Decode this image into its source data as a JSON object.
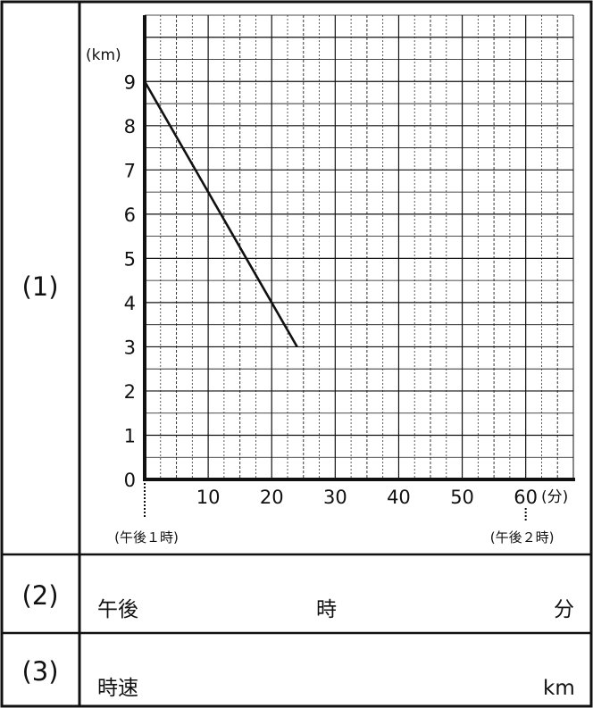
{
  "table": {
    "row1_label": "(1)",
    "row2_label": "(2)",
    "row3_label": "(3)"
  },
  "row2": {
    "prefix": "午後",
    "hour_unit": "時",
    "minute_unit": "分"
  },
  "row3": {
    "prefix": "時速",
    "unit": "km"
  },
  "chart_data": {
    "type": "line",
    "title": "",
    "xlabel": "(分)",
    "ylabel": "(km)",
    "xlim": [
      0,
      67.5
    ],
    "ylim": [
      0,
      10.5
    ],
    "x_ticks": [
      10,
      20,
      30,
      40,
      50,
      60
    ],
    "y_ticks": [
      0,
      1,
      2,
      3,
      4,
      5,
      6,
      7,
      8,
      9
    ],
    "x_minor_step": 2.5,
    "y_minor_step": 1,
    "grid": true,
    "start_label": "(午後１時)",
    "end_label": "(午後２時)",
    "series": [
      {
        "x": [
          0,
          24
        ],
        "y": [
          9,
          3
        ]
      }
    ]
  }
}
